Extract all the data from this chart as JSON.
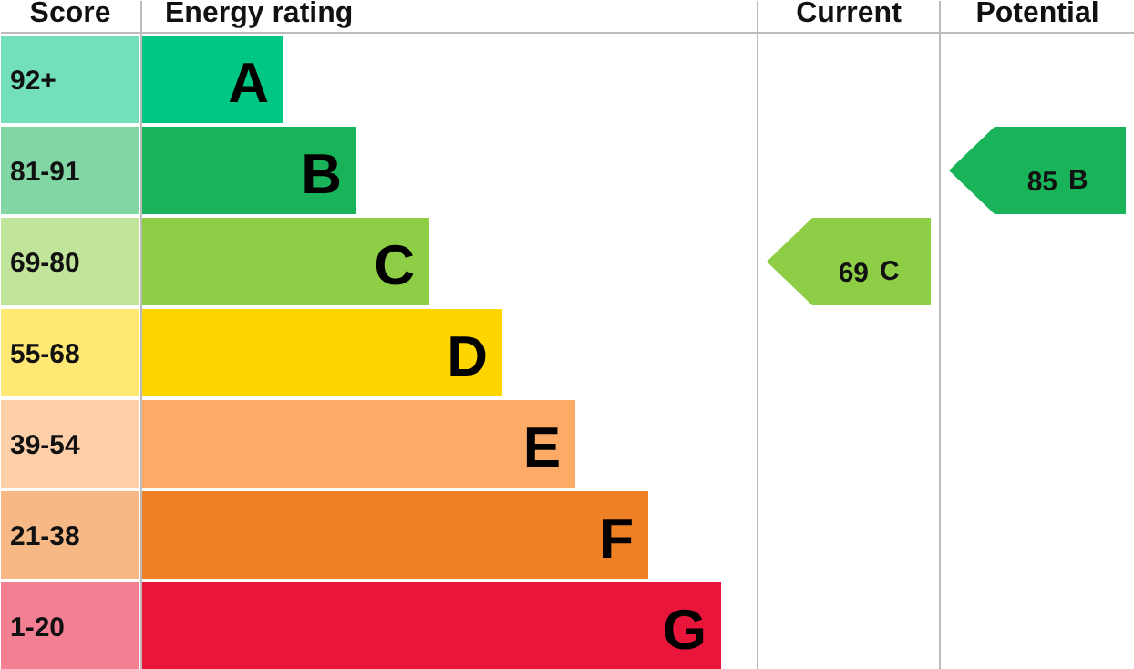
{
  "chart_data": {
    "type": "other",
    "xlabel": "Energy rating",
    "ylabel": "Score",
    "categories": [
      "92+",
      "81-91",
      "69-80",
      "55-68",
      "39-54",
      "21-38",
      "1-20"
    ],
    "value_labels": [
      "A",
      "B",
      "C",
      "D",
      "E",
      "F",
      "G"
    ],
    "data_labels": true,
    "annotations": [
      "Current",
      "Potential"
    ],
    "colors": [
      "#00c781",
      "#19b459",
      "#8dce46",
      "#ffd500",
      "#fcaa65",
      "#ef8023",
      "#e9153b"
    ],
    "series": [
      {
        "values": [
          null,
          null,
          69,
          null,
          null,
          null,
          null
        ]
      },
      {
        "values": [
          null,
          85,
          null,
          null,
          null,
          null,
          null
        ]
      }
    ]
  }
}
